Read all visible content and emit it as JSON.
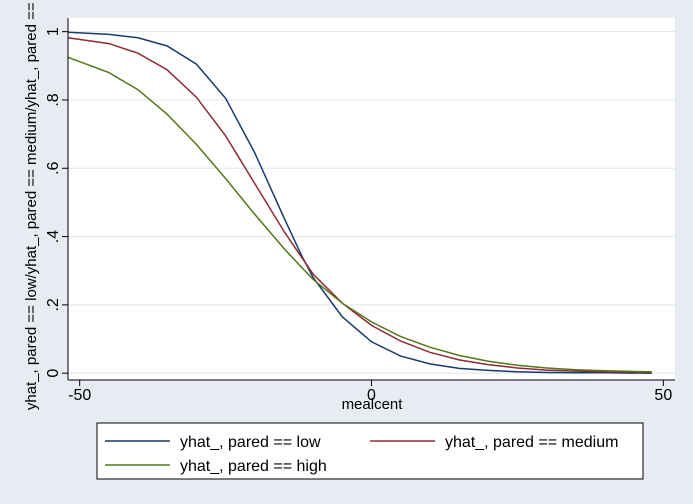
{
  "chart_data": {
    "type": "line",
    "xlabel": "mealcent",
    "ylabel": "yhat_, pared == low/yhat_, pared == medium/yhat_, pared == high",
    "xlim": [
      -52,
      52
    ],
    "ylim": [
      -0.02,
      1.04
    ],
    "xticks": [
      {
        "value": -50,
        "label": "-50"
      },
      {
        "value": 0,
        "label": "0"
      },
      {
        "value": 50,
        "label": "50"
      }
    ],
    "yticks": [
      {
        "value": 0,
        "label": "0"
      },
      {
        "value": 0.2,
        "label": ".2"
      },
      {
        "value": 0.4,
        "label": ".4"
      },
      {
        "value": 0.6,
        "label": ".6"
      },
      {
        "value": 0.8,
        "label": ".8"
      },
      {
        "value": 1,
        "label": "1"
      }
    ],
    "grid": true,
    "legend_position": "bottom",
    "series": [
      {
        "name": "yhat_, pared == low",
        "color": "#1a3a6e",
        "x": [
          -52,
          -45,
          -40,
          -35,
          -30,
          -25,
          -20,
          -15,
          -12,
          -10,
          -5,
          0,
          5,
          10,
          15,
          20,
          25,
          30,
          35,
          40,
          48
        ],
        "y": [
          0.998,
          0.992,
          0.982,
          0.958,
          0.905,
          0.805,
          0.645,
          0.455,
          0.345,
          0.28,
          0.165,
          0.092,
          0.05,
          0.027,
          0.014,
          0.008,
          0.004,
          0.002,
          0.001,
          0.001,
          0.0
        ]
      },
      {
        "name": "yhat_, pared == medium",
        "color": "#8e2b33",
        "x": [
          -52,
          -45,
          -40,
          -35,
          -30,
          -25,
          -20,
          -15,
          -12,
          -10,
          -5,
          0,
          5,
          10,
          15,
          20,
          25,
          30,
          35,
          40,
          48
        ],
        "y": [
          0.982,
          0.965,
          0.937,
          0.888,
          0.808,
          0.695,
          0.555,
          0.415,
          0.34,
          0.29,
          0.205,
          0.14,
          0.094,
          0.061,
          0.039,
          0.025,
          0.015,
          0.009,
          0.006,
          0.004,
          0.002
        ]
      },
      {
        "name": "yhat_, pared == high",
        "color": "#56761a",
        "x": [
          -52,
          -45,
          -40,
          -35,
          -30,
          -25,
          -20,
          -15,
          -12,
          -10,
          -5,
          0,
          5,
          10,
          15,
          20,
          25,
          30,
          35,
          40,
          48
        ],
        "y": [
          0.925,
          0.88,
          0.83,
          0.758,
          0.67,
          0.57,
          0.465,
          0.365,
          0.31,
          0.275,
          0.205,
          0.15,
          0.107,
          0.076,
          0.052,
          0.035,
          0.023,
          0.015,
          0.01,
          0.007,
          0.004
        ]
      }
    ]
  }
}
